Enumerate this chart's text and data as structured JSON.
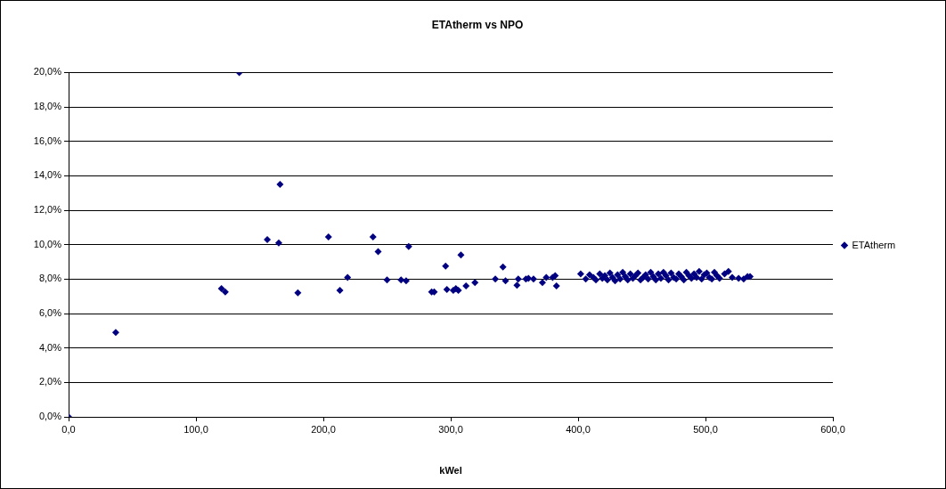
{
  "chart_data": {
    "type": "scatter",
    "title": "ETAtherm vs NPO",
    "xlabel": "kWel",
    "xlim": [
      0,
      600
    ],
    "xticks": [
      {
        "value": 0,
        "label": "0,0"
      },
      {
        "value": 100,
        "label": "100,0"
      },
      {
        "value": 200,
        "label": "200,0"
      },
      {
        "value": 300,
        "label": "300,0"
      },
      {
        "value": 400,
        "label": "400,0"
      },
      {
        "value": 500,
        "label": "500,0"
      },
      {
        "value": 600,
        "label": "600,0"
      }
    ],
    "ylim": [
      0,
      20
    ],
    "yticks": [
      {
        "value": 0,
        "label": "0,0%"
      },
      {
        "value": 2,
        "label": "2,0%"
      },
      {
        "value": 4,
        "label": "4,0%"
      },
      {
        "value": 6,
        "label": "6,0%"
      },
      {
        "value": 8,
        "label": "8,0%"
      },
      {
        "value": 10,
        "label": "10,0%"
      },
      {
        "value": 12,
        "label": "12,0%"
      },
      {
        "value": 14,
        "label": "14,0%"
      },
      {
        "value": 16,
        "label": "16,0%"
      },
      {
        "value": 18,
        "label": "18,0%"
      },
      {
        "value": 20,
        "label": "20,0%"
      }
    ],
    "grid": "y",
    "legend": "right",
    "marker": "diamond",
    "series": [
      {
        "name": "ETAtherm",
        "color": "#000080",
        "x": [
          0,
          37,
          120,
          123,
          134,
          156,
          165,
          166,
          180,
          204,
          213,
          219,
          239,
          243,
          250,
          261,
          265,
          267,
          285,
          287,
          296,
          297,
          302,
          304,
          306,
          308,
          312,
          319,
          335,
          341,
          343,
          352,
          353,
          359,
          361,
          365,
          372,
          375,
          380,
          382,
          383,
          402,
          406,
          409,
          412,
          414,
          417,
          419,
          421,
          423,
          425,
          427,
          429,
          431,
          433,
          435,
          437,
          439,
          441,
          443,
          445,
          447,
          449,
          451,
          453,
          455,
          457,
          459,
          461,
          463,
          465,
          467,
          469,
          471,
          473,
          475,
          477,
          479,
          481,
          483,
          485,
          487,
          489,
          491,
          493,
          495,
          497,
          499,
          501,
          503,
          505,
          507,
          509,
          511,
          515,
          518,
          521,
          526,
          530,
          533,
          535
        ],
        "values": [
          0,
          4.9,
          7.45,
          7.25,
          20.0,
          10.3,
          10.1,
          13.5,
          7.2,
          10.45,
          7.35,
          8.1,
          10.45,
          9.6,
          7.95,
          7.95,
          7.9,
          9.9,
          7.25,
          7.25,
          8.75,
          7.4,
          7.35,
          7.45,
          7.35,
          9.4,
          7.6,
          7.8,
          8.0,
          8.7,
          7.9,
          7.65,
          8.0,
          8.0,
          8.05,
          8.0,
          7.8,
          8.1,
          8.1,
          8.2,
          7.6,
          8.3,
          8.0,
          8.25,
          8.1,
          7.95,
          8.3,
          8.05,
          8.2,
          7.95,
          8.35,
          8.1,
          7.9,
          8.25,
          8.0,
          8.4,
          8.15,
          7.95,
          8.3,
          8.05,
          8.2,
          8.35,
          7.95,
          8.1,
          8.25,
          8.0,
          8.4,
          8.15,
          7.95,
          8.3,
          8.05,
          8.4,
          8.2,
          7.95,
          8.35,
          8.1,
          8.0,
          8.3,
          8.15,
          7.95,
          8.4,
          8.2,
          8.05,
          8.3,
          8.1,
          8.45,
          8.0,
          8.25,
          8.35,
          8.1,
          8.0,
          8.4,
          8.2,
          8.05,
          8.3,
          8.45,
          8.1,
          8.05,
          8.0,
          8.15,
          8.15
        ]
      }
    ]
  }
}
